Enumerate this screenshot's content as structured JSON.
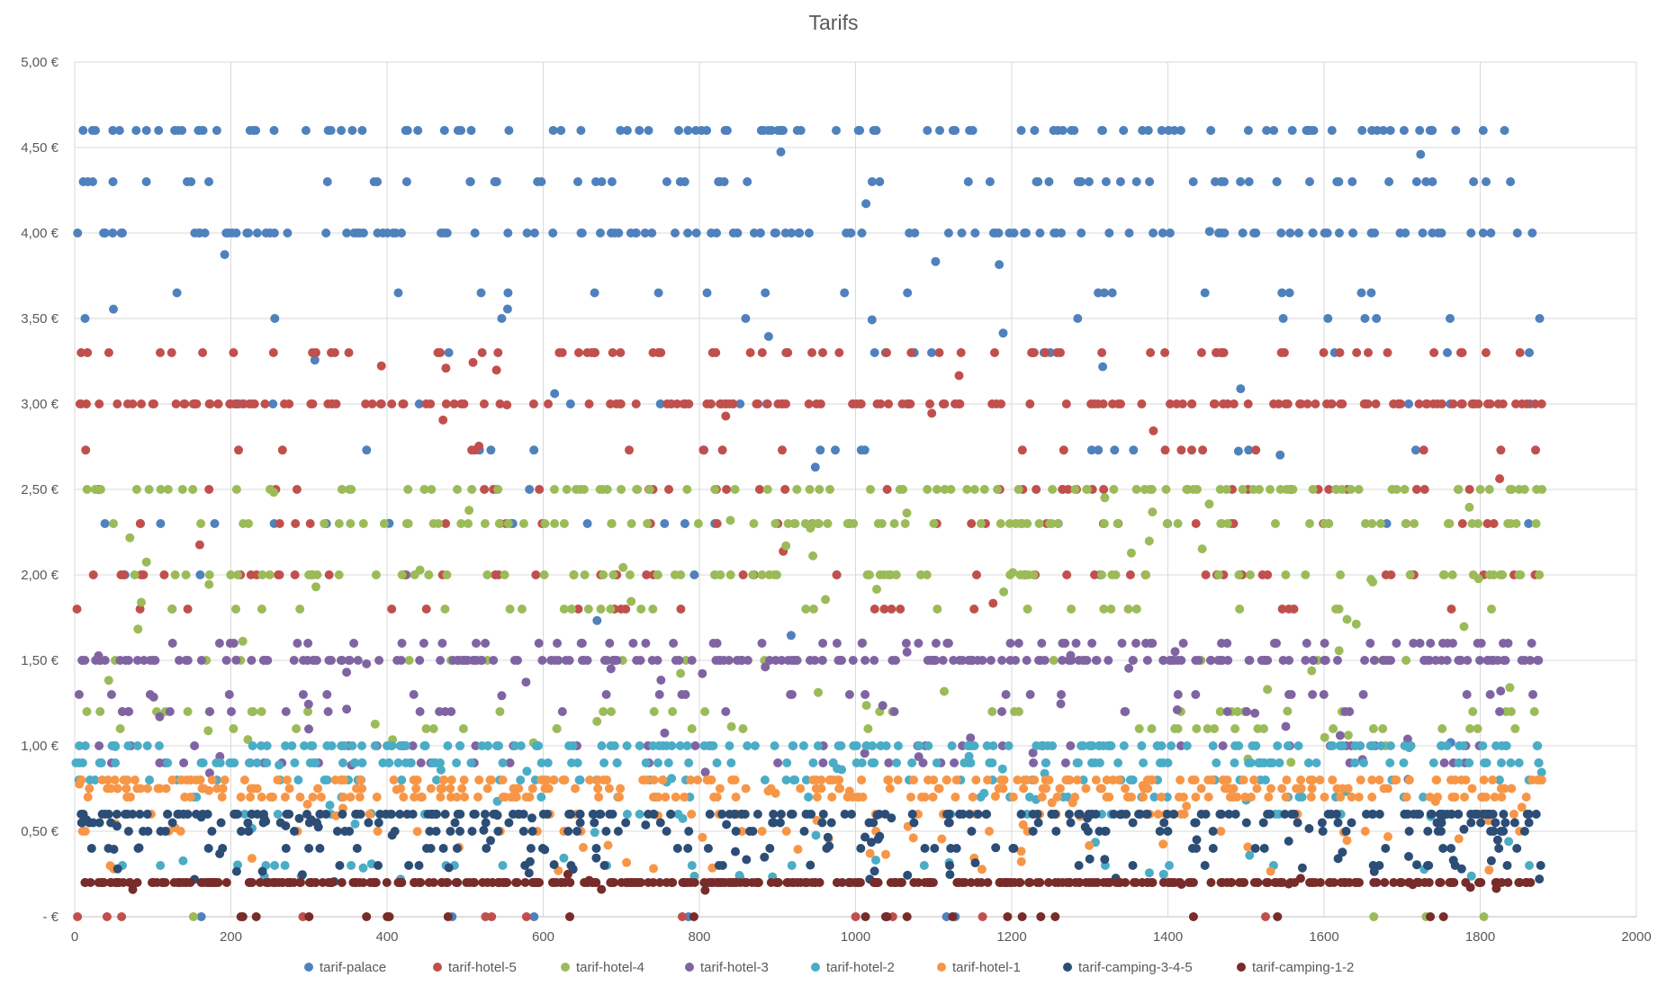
{
  "chart_data": {
    "type": "scatter",
    "title": "Tarifs",
    "xlabel": "",
    "ylabel": "",
    "xlim": [
      0,
      2000
    ],
    "ylim": [
      0,
      5
    ],
    "x_ticks": [
      {
        "value": 0,
        "label": "0"
      },
      {
        "value": 200,
        "label": "200"
      },
      {
        "value": 400,
        "label": "400"
      },
      {
        "value": 600,
        "label": "600"
      },
      {
        "value": 800,
        "label": "800"
      },
      {
        "value": 1000,
        "label": "1000"
      },
      {
        "value": 1200,
        "label": "1200"
      },
      {
        "value": 1400,
        "label": "1400"
      },
      {
        "value": 1600,
        "label": "1600"
      },
      {
        "value": 1800,
        "label": "1800"
      },
      {
        "value": 2000,
        "label": "2000"
      }
    ],
    "y_ticks": [
      {
        "value": 0,
        "label": " -   €"
      },
      {
        "value": 0.5,
        "label": "0,50 €"
      },
      {
        "value": 1.0,
        "label": "1,00 €"
      },
      {
        "value": 1.5,
        "label": "1,50 €"
      },
      {
        "value": 2.0,
        "label": "2,00 €"
      },
      {
        "value": 2.5,
        "label": "2,50 €"
      },
      {
        "value": 3.0,
        "label": "3,00 €"
      },
      {
        "value": 3.5,
        "label": "3,50 €"
      },
      {
        "value": 4.0,
        "label": "4,00 €"
      },
      {
        "value": 4.5,
        "label": "4,50 €"
      },
      {
        "value": 5.0,
        "label": "5,00 €"
      }
    ],
    "grid": true,
    "legend_position": "bottom",
    "series": [
      {
        "name": "tarif-palace",
        "color": "#4f81bd",
        "levels": [
          4.6,
          4.3,
          4.0,
          3.65,
          3.5,
          3.3,
          3.0,
          2.73,
          2.5,
          2.3,
          2.0,
          0.0
        ],
        "level_weights": [
          0.26,
          0.14,
          0.3,
          0.04,
          0.03,
          0.02,
          0.02,
          0.04,
          0.02,
          0.03,
          0.03,
          0.02
        ],
        "spread": [
          0.9,
          4.6
        ]
      },
      {
        "name": "tarif-hotel-5",
        "color": "#c0504d",
        "levels": [
          3.3,
          3.0,
          2.73,
          2.5,
          2.3,
          2.0,
          1.8,
          0.0
        ],
        "level_weights": [
          0.14,
          0.44,
          0.05,
          0.07,
          0.05,
          0.13,
          0.05,
          0.02
        ],
        "spread": [
          1.5,
          3.3
        ]
      },
      {
        "name": "tarif-hotel-4",
        "color": "#9bbb59",
        "levels": [
          2.5,
          2.3,
          2.0,
          1.8,
          1.5,
          1.2,
          1.1,
          0.0
        ],
        "level_weights": [
          0.2,
          0.22,
          0.16,
          0.06,
          0.08,
          0.08,
          0.06,
          0.01
        ],
        "spread": [
          0.9,
          2.5
        ]
      },
      {
        "name": "tarif-hotel-3",
        "color": "#8064a2",
        "levels": [
          1.6,
          1.5,
          1.3,
          1.2,
          1.0,
          0.9
        ],
        "level_weights": [
          0.14,
          0.48,
          0.07,
          0.07,
          0.1,
          0.06
        ],
        "spread": [
          0.8,
          1.6
        ]
      },
      {
        "name": "tarif-hotel-2",
        "color": "#4bacc6",
        "levels": [
          1.0,
          0.9,
          0.8,
          0.7,
          0.6,
          0.3
        ],
        "level_weights": [
          0.32,
          0.3,
          0.1,
          0.08,
          0.06,
          0.04
        ],
        "spread": [
          0.2,
          1.0
        ]
      },
      {
        "name": "tarif-hotel-1",
        "color": "#f79646",
        "levels": [
          0.8,
          0.75,
          0.7,
          0.6,
          0.5
        ],
        "level_weights": [
          0.34,
          0.2,
          0.24,
          0.06,
          0.04
        ],
        "spread": [
          0.25,
          0.8
        ]
      },
      {
        "name": "tarif-camping-3-4-5",
        "color": "#2c4d75",
        "levels": [
          0.6,
          0.55,
          0.5,
          0.4,
          0.3
        ],
        "level_weights": [
          0.42,
          0.12,
          0.14,
          0.08,
          0.06
        ],
        "spread": [
          0.2,
          0.6
        ]
      },
      {
        "name": "tarif-camping-1-2",
        "color": "#772c2a",
        "levels": [
          0.2,
          0.0
        ],
        "level_weights": [
          0.9,
          0.06
        ],
        "spread": [
          0.15,
          0.25
        ]
      }
    ],
    "x_range": [
      0,
      1880
    ]
  }
}
